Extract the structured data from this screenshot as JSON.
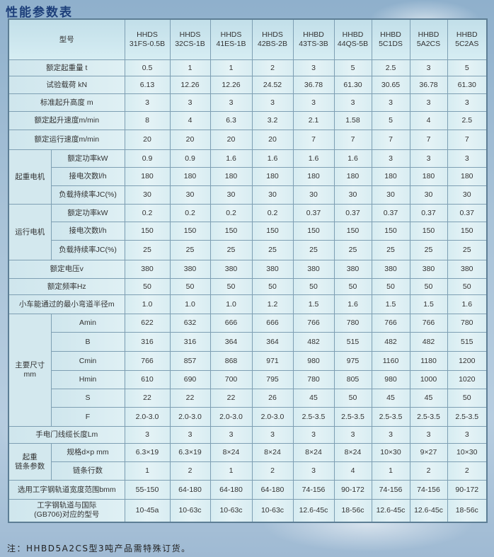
{
  "title": "性能参数表",
  "header": {
    "label": "型号",
    "models": [
      "HHDS\n31FS-0.5B",
      "HHDS\n32CS-1B",
      "HHDS\n41ES-1B",
      "HHDS\n42BS-2B",
      "HHBD\n43TS-3B",
      "HHBD\n44QS-5B",
      "HHBD\n5C1DS",
      "HHBD\n5A2CS",
      "HHBD\n5C2AS"
    ]
  },
  "rows": [
    {
      "group": "",
      "label": "额定起重量 t",
      "values": [
        "0.5",
        "1",
        "1",
        "2",
        "3",
        "5",
        "2.5",
        "3",
        "5"
      ]
    },
    {
      "group": "",
      "label": "试验载荷 kN",
      "values": [
        "6.13",
        "12.26",
        "12.26",
        "24.52",
        "36.78",
        "61.30",
        "30.65",
        "36.78",
        "61.30"
      ]
    },
    {
      "group": "",
      "label": "标准起升高度 m",
      "values": [
        "3",
        "3",
        "3",
        "3",
        "3",
        "3",
        "3",
        "3",
        "3"
      ]
    },
    {
      "group": "",
      "label": "额定起升速度m/min",
      "values": [
        "8",
        "4",
        "6.3",
        "3.2",
        "2.1",
        "1.58",
        "5",
        "4",
        "2.5"
      ]
    },
    {
      "group": "",
      "label": "额定运行速度m/min",
      "values": [
        "20",
        "20",
        "20",
        "20",
        "7",
        "7",
        "7",
        "7",
        "7"
      ]
    },
    {
      "group": "起重电机",
      "label": "额定功率kW",
      "values": [
        "0.9",
        "0.9",
        "1.6",
        "1.6",
        "1.6",
        "1.6",
        "3",
        "3",
        "3"
      ]
    },
    {
      "group": "起重电机",
      "label": "接电次数l/h",
      "values": [
        "180",
        "180",
        "180",
        "180",
        "180",
        "180",
        "180",
        "180",
        "180"
      ]
    },
    {
      "group": "起重电机",
      "label": "负载持续率JC(%)",
      "values": [
        "30",
        "30",
        "30",
        "30",
        "30",
        "30",
        "30",
        "30",
        "30"
      ]
    },
    {
      "group": "运行电机",
      "label": "额定功率kW",
      "values": [
        "0.2",
        "0.2",
        "0.2",
        "0.2",
        "0.37",
        "0.37",
        "0.37",
        "0.37",
        "0.37"
      ]
    },
    {
      "group": "运行电机",
      "label": "接电次数l/h",
      "values": [
        "150",
        "150",
        "150",
        "150",
        "150",
        "150",
        "150",
        "150",
        "150"
      ]
    },
    {
      "group": "运行电机",
      "label": "负载持续率JC(%)",
      "values": [
        "25",
        "25",
        "25",
        "25",
        "25",
        "25",
        "25",
        "25",
        "25"
      ]
    },
    {
      "group": "",
      "label": "额定电压v",
      "values": [
        "380",
        "380",
        "380",
        "380",
        "380",
        "380",
        "380",
        "380",
        "380"
      ]
    },
    {
      "group": "",
      "label": "额定频率Hz",
      "values": [
        "50",
        "50",
        "50",
        "50",
        "50",
        "50",
        "50",
        "50",
        "50"
      ]
    },
    {
      "group": "",
      "label": "小车能通过的最小弯道半径m",
      "values": [
        "1.0",
        "1.0",
        "1.0",
        "1.2",
        "1.5",
        "1.6",
        "1.5",
        "1.5",
        "1.6"
      ]
    },
    {
      "group": "主要尺寸\nmm",
      "label": "Amin",
      "values": [
        "622",
        "632",
        "666",
        "666",
        "766",
        "780",
        "766",
        "766",
        "780"
      ]
    },
    {
      "group": "主要尺寸\nmm",
      "label": "B",
      "values": [
        "316",
        "316",
        "364",
        "364",
        "482",
        "515",
        "482",
        "482",
        "515"
      ]
    },
    {
      "group": "主要尺寸\nmm",
      "label": "Cmin",
      "values": [
        "766",
        "857",
        "868",
        "971",
        "980",
        "975",
        "1160",
        "1180",
        "1200"
      ]
    },
    {
      "group": "主要尺寸\nmm",
      "label": "Hmin",
      "values": [
        "610",
        "690",
        "700",
        "795",
        "780",
        "805",
        "980",
        "1000",
        "1020"
      ]
    },
    {
      "group": "主要尺寸\nmm",
      "label": "S",
      "values": [
        "22",
        "22",
        "22",
        "26",
        "45",
        "50",
        "45",
        "45",
        "50"
      ]
    },
    {
      "group": "主要尺寸\nmm",
      "label": "F",
      "values": [
        "2.0-3.0",
        "2.0-3.0",
        "2.0-3.0",
        "2.0-3.0",
        "2.5-3.5",
        "2.5-3.5",
        "2.5-3.5",
        "2.5-3.5",
        "2.5-3.5"
      ]
    },
    {
      "group": "",
      "label": "手电门线缆长度Lm",
      "values": [
        "3",
        "3",
        "3",
        "3",
        "3",
        "3",
        "3",
        "3",
        "3"
      ]
    },
    {
      "group": "起重\n链条参数",
      "label": "规格d×p mm",
      "values": [
        "6.3×19",
        "6.3×19",
        "8×24",
        "8×24",
        "8×24",
        "8×24",
        "10×30",
        "9×27",
        "10×30"
      ]
    },
    {
      "group": "起重\n链条参数",
      "label": "链条行数",
      "values": [
        "1",
        "2",
        "1",
        "2",
        "3",
        "4",
        "1",
        "2",
        "2"
      ]
    },
    {
      "group": "",
      "label": "选用工字钢轨道宽度范围bmm",
      "values": [
        "55-150",
        "64-180",
        "64-180",
        "64-180",
        "74-156",
        "90-172",
        "74-156",
        "74-156",
        "90-172"
      ]
    },
    {
      "group": "",
      "label": "工字钢轨道与国际\n(GB706)对应的型号",
      "values": [
        "10-45a",
        "10-63c",
        "10-63c",
        "10-63c",
        "12.6-45c",
        "18-56c",
        "12.6-45c",
        "12.6-45c",
        "18-56c"
      ]
    }
  ],
  "note": "注：HHBD5A2CS型3吨产品需特殊订货。"
}
